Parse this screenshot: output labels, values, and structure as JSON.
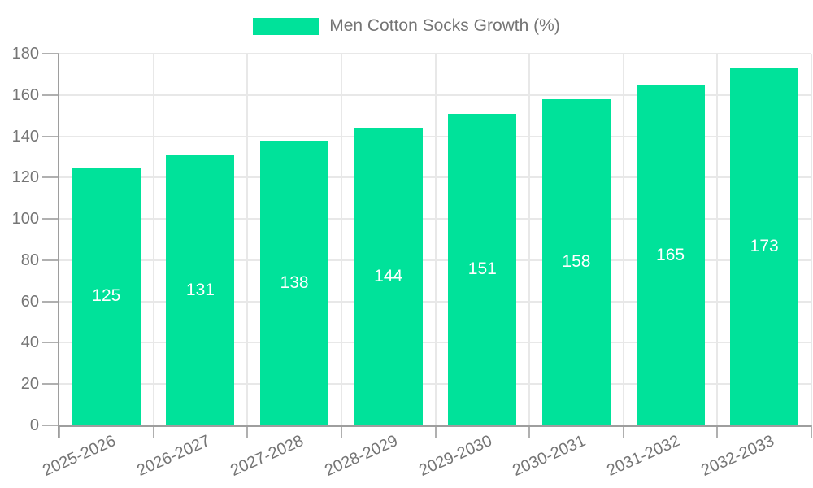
{
  "legend": {
    "label": "Men Cotton Socks Growth (%)"
  },
  "colors": {
    "bar": "#00e29a",
    "grid": "#e8e8e8",
    "axis": "#9e9e9e",
    "tick": "#b0b0b0",
    "text": "#757575",
    "value_label": "#ffffff",
    "background": "#ffffff"
  },
  "chart_data": {
    "type": "bar",
    "title": "",
    "categories": [
      "2025-2026",
      "2026-2027",
      "2027-2028",
      "2028-2029",
      "2029-2030",
      "2030-2031",
      "2031-2032",
      "2032-2033"
    ],
    "series": [
      {
        "name": "Men Cotton Socks Growth (%)",
        "values": [
          125,
          131,
          138,
          144,
          151,
          158,
          165,
          173
        ]
      }
    ],
    "xlabel": "",
    "ylabel": "",
    "ylim": [
      0,
      180
    ],
    "ytick_step": 20,
    "grid": true,
    "legend_position": "top",
    "value_labels": "inside-center",
    "x_label_rotation_deg": -24
  }
}
